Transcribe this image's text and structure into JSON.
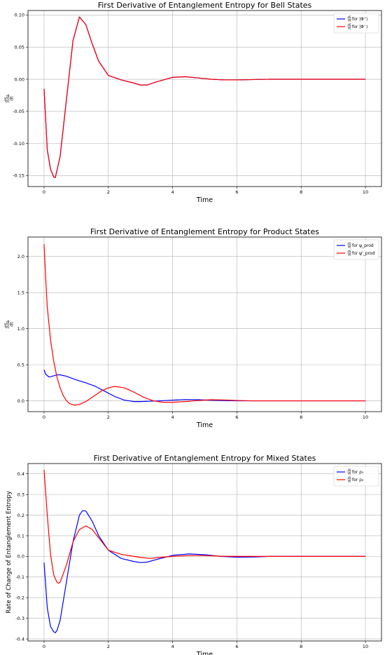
{
  "chart_data": [
    {
      "type": "line",
      "title": "First Derivative of Entanglement Entropy for Bell States",
      "xlabel": "Time",
      "ylabel_num": "dS",
      "ylabel_sub": "A",
      "ylabel_den": "dt",
      "xlim": [
        -0.5,
        10.5
      ],
      "ylim": [
        -0.167,
        0.107
      ],
      "xticks": [
        "0",
        "2",
        "4",
        "6",
        "8",
        "10"
      ],
      "yticks": [
        "0.10",
        "0.05",
        "0.00",
        "-0.05",
        "-0.10",
        "-0.15"
      ],
      "grid": true,
      "legend_position": "top-right",
      "series": [
        {
          "legend_prefix": "dS_A/dt",
          "legend_suffix": " for |Φ⁺⟩",
          "color": "#0000ff",
          "x": [
            0,
            0.1,
            0.2,
            0.3,
            0.35,
            0.5,
            0.7,
            0.9,
            1.1,
            1.3,
            1.5,
            1.7,
            2.0,
            2.4,
            2.8,
            3.0,
            3.2,
            3.5,
            4.0,
            4.4,
            4.8,
            5.2,
            5.6,
            6.0,
            7.0,
            8.0,
            9.0,
            10.0
          ],
          "y": [
            -0.015,
            -0.11,
            -0.14,
            -0.152,
            -0.153,
            -0.12,
            -0.03,
            0.06,
            0.097,
            0.085,
            0.055,
            0.028,
            0.006,
            -0.001,
            -0.006,
            -0.009,
            -0.009,
            -0.004,
            0.003,
            0.004,
            0.002,
            0.0,
            -0.001,
            -0.001,
            0.0,
            0.0,
            0.0,
            0.0
          ]
        },
        {
          "legend_prefix": "dS_A/dt",
          "legend_suffix": " for |Φ⁻⟩",
          "color": "#ff0000",
          "x": [
            0,
            0.1,
            0.2,
            0.3,
            0.35,
            0.5,
            0.7,
            0.9,
            1.1,
            1.3,
            1.5,
            1.7,
            2.0,
            2.4,
            2.8,
            3.0,
            3.2,
            3.5,
            4.0,
            4.4,
            4.8,
            5.2,
            5.6,
            6.0,
            7.0,
            8.0,
            9.0,
            10.0
          ],
          "y": [
            -0.015,
            -0.11,
            -0.14,
            -0.152,
            -0.153,
            -0.12,
            -0.03,
            0.06,
            0.097,
            0.085,
            0.055,
            0.028,
            0.006,
            -0.001,
            -0.006,
            -0.009,
            -0.009,
            -0.004,
            0.003,
            0.004,
            0.002,
            0.0,
            -0.001,
            -0.001,
            0.0,
            0.0,
            0.0,
            0.0
          ]
        }
      ]
    },
    {
      "type": "line",
      "title": "First Derivative of Entanglement Entropy for Product States",
      "xlabel": "Time",
      "ylabel_num": "dS",
      "ylabel_sub": "A",
      "ylabel_den": "dt",
      "xlim": [
        -0.5,
        10.5
      ],
      "ylim": [
        -0.15,
        2.27
      ],
      "xticks": [
        "0",
        "2",
        "4",
        "6",
        "8",
        "10"
      ],
      "yticks": [
        "2.0",
        "1.5",
        "1.0",
        "0.5",
        "0.0"
      ],
      "grid": true,
      "legend_position": "top-right",
      "series": [
        {
          "legend_prefix": "dS_A/dt",
          "legend_suffix": " for ψ_prod",
          "color": "#0000ff",
          "x": [
            0,
            0.05,
            0.15,
            0.25,
            0.4,
            0.5,
            0.7,
            1.0,
            1.3,
            1.6,
            1.9,
            2.2,
            2.5,
            2.8,
            3.0,
            3.3,
            3.6,
            4.0,
            4.4,
            4.8,
            5.2,
            5.6,
            6.0,
            6.5,
            7.0,
            8.0,
            9.0,
            10.0
          ],
          "y": [
            0.43,
            0.37,
            0.33,
            0.34,
            0.36,
            0.36,
            0.34,
            0.29,
            0.25,
            0.2,
            0.13,
            0.06,
            0.01,
            -0.01,
            -0.01,
            -0.005,
            0.0,
            0.01,
            0.018,
            0.015,
            0.008,
            0.004,
            0.0,
            0.0,
            0.0,
            0.0,
            0.0,
            0.0
          ]
        },
        {
          "legend_prefix": "dS_A/dt",
          "legend_suffix": " for ψ'_prod",
          "color": "#ff0000",
          "x": [
            0,
            0.05,
            0.1,
            0.2,
            0.3,
            0.4,
            0.5,
            0.6,
            0.7,
            0.8,
            0.95,
            1.1,
            1.3,
            1.5,
            1.8,
            2.0,
            2.2,
            2.5,
            2.8,
            3.1,
            3.4,
            3.7,
            4.0,
            4.4,
            4.8,
            5.2,
            5.6,
            6.0,
            6.5,
            7.0,
            8.0,
            9.0,
            10.0
          ],
          "y": [
            2.17,
            1.7,
            1.3,
            0.85,
            0.55,
            0.33,
            0.18,
            0.07,
            0.0,
            -0.04,
            -0.06,
            -0.05,
            -0.01,
            0.05,
            0.14,
            0.18,
            0.2,
            0.18,
            0.12,
            0.05,
            0.0,
            -0.02,
            -0.02,
            -0.01,
            0.005,
            0.015,
            0.012,
            0.005,
            0.0,
            0.0,
            0.0,
            0.0,
            0.0
          ]
        }
      ]
    },
    {
      "type": "line",
      "title": "First Derivative of Entanglement Entropy for Mixed States",
      "xlabel": "Time",
      "ylabel": "Rate of Change of Entanglement Entropy",
      "xlim": [
        -0.5,
        10.5
      ],
      "ylim": [
        -0.41,
        0.45
      ],
      "xticks": [
        "0",
        "2",
        "4",
        "6",
        "8",
        "10"
      ],
      "yticks": [
        "0.4",
        "0.3",
        "0.2",
        "0.1",
        "0.0",
        "-0.1",
        "-0.2",
        "-0.3",
        "-0.4"
      ],
      "grid": true,
      "legend_position": "top-right",
      "series": [
        {
          "legend_prefix": "dS_A/dt",
          "legend_suffix": " for ρ₁",
          "color": "#0000ff",
          "x": [
            0,
            0.1,
            0.2,
            0.3,
            0.35,
            0.4,
            0.5,
            0.7,
            0.9,
            1.1,
            1.2,
            1.3,
            1.5,
            1.7,
            2.0,
            2.4,
            2.8,
            3.0,
            3.2,
            3.5,
            4.0,
            4.5,
            5.0,
            5.5,
            6.0,
            6.5,
            7.0,
            8.0,
            9.0,
            10.0
          ],
          "y": [
            -0.03,
            -0.25,
            -0.34,
            -0.365,
            -0.37,
            -0.36,
            -0.31,
            -0.12,
            0.07,
            0.2,
            0.222,
            0.22,
            0.17,
            0.1,
            0.03,
            -0.01,
            -0.025,
            -0.03,
            -0.028,
            -0.015,
            0.005,
            0.012,
            0.008,
            0.0,
            -0.004,
            -0.003,
            0.0,
            0.0,
            0.0,
            0.0
          ]
        },
        {
          "legend_prefix": "dS_A/dt",
          "legend_suffix": " for ρ₂",
          "color": "#ff0000",
          "x": [
            0,
            0.1,
            0.2,
            0.3,
            0.4,
            0.45,
            0.5,
            0.7,
            0.9,
            1.1,
            1.3,
            1.5,
            1.7,
            2.0,
            2.4,
            2.8,
            3.0,
            3.3,
            3.6,
            4.0,
            4.5,
            5.0,
            5.5,
            6.0,
            6.5,
            7.0,
            8.0,
            9.0,
            10.0
          ],
          "y": [
            0.42,
            0.2,
            0.01,
            -0.09,
            -0.125,
            -0.13,
            -0.125,
            -0.04,
            0.07,
            0.13,
            0.148,
            0.13,
            0.09,
            0.03,
            0.01,
            0.0,
            -0.005,
            -0.01,
            -0.005,
            0.0,
            0.004,
            0.004,
            0.001,
            0.0,
            0.0,
            0.0,
            0.0,
            0.0,
            0.0
          ]
        }
      ]
    }
  ]
}
